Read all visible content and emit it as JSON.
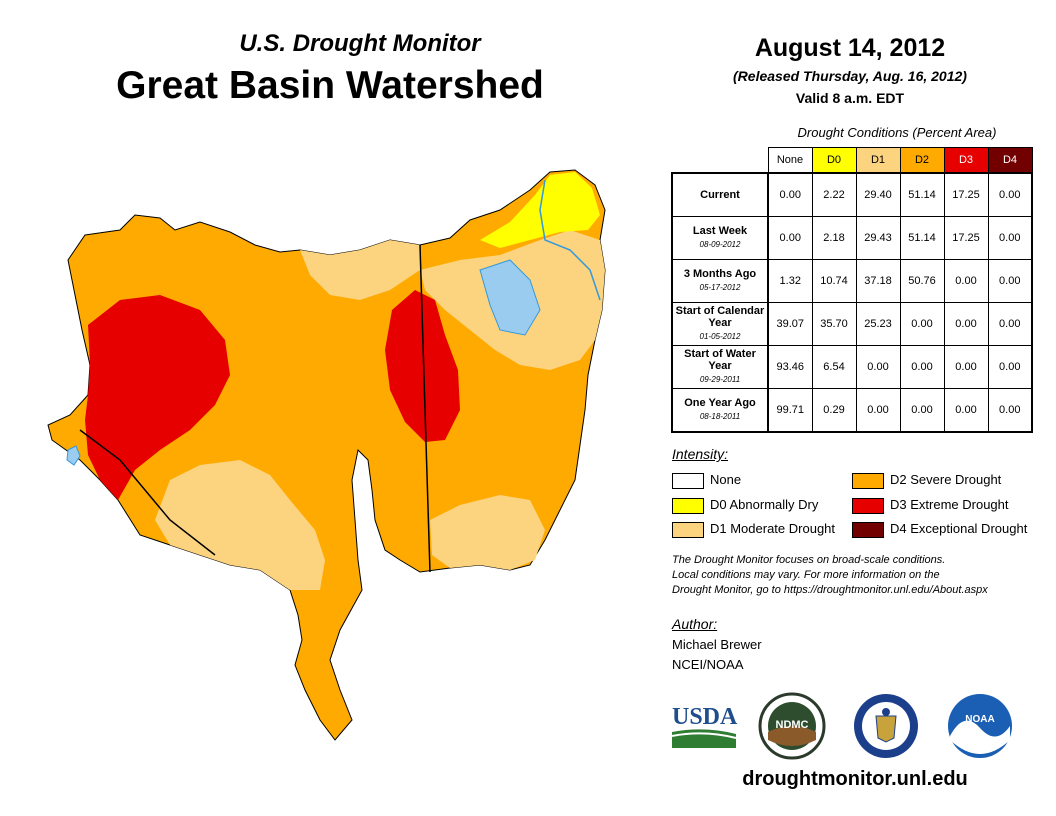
{
  "header": {
    "supertitle": "U.S. Drought Monitor",
    "title": "Great Basin Watershed",
    "date": "August 14, 2012",
    "released": "(Released Thursday, Aug. 16, 2012)",
    "valid": "Valid 8 a.m. EDT"
  },
  "table": {
    "caption": "Drought Conditions (Percent Area)",
    "columns": [
      "None",
      "D0",
      "D1",
      "D2",
      "D3",
      "D4"
    ],
    "column_colors": [
      "#ffffff",
      "#ffff00",
      "#fcd37f",
      "#ffaa00",
      "#e60000",
      "#730000"
    ],
    "column_text_colors": [
      "#000000",
      "#000000",
      "#000000",
      "#000000",
      "#ffffff",
      "#ffffff"
    ],
    "rows": [
      {
        "label": "Current",
        "date": "",
        "values": [
          "0.00",
          "2.22",
          "29.40",
          "51.14",
          "17.25",
          "0.00"
        ]
      },
      {
        "label": "Last Week",
        "date": "08-09-2012",
        "values": [
          "0.00",
          "2.18",
          "29.43",
          "51.14",
          "17.25",
          "0.00"
        ]
      },
      {
        "label": "3 Months Ago",
        "date": "05-17-2012",
        "values": [
          "1.32",
          "10.74",
          "37.18",
          "50.76",
          "0.00",
          "0.00"
        ]
      },
      {
        "label": "Start of Calendar Year",
        "date": "01-05-2012",
        "values": [
          "39.07",
          "35.70",
          "25.23",
          "0.00",
          "0.00",
          "0.00"
        ]
      },
      {
        "label": "Start of Water Year",
        "date": "09-29-2011",
        "values": [
          "93.46",
          "6.54",
          "0.00",
          "0.00",
          "0.00",
          "0.00"
        ]
      },
      {
        "label": "One Year Ago",
        "date": "08-18-2011",
        "values": [
          "99.71",
          "0.29",
          "0.00",
          "0.00",
          "0.00",
          "0.00"
        ]
      }
    ]
  },
  "legend": {
    "title": "Intensity:",
    "items": [
      {
        "label": "None",
        "color": "#ffffff"
      },
      {
        "label": "D0 Abnormally Dry",
        "color": "#ffff00"
      },
      {
        "label": "D1 Moderate Drought",
        "color": "#fcd37f"
      },
      {
        "label": "D2 Severe Drought",
        "color": "#ffaa00"
      },
      {
        "label": "D3 Extreme Drought",
        "color": "#e60000"
      },
      {
        "label": "D4 Exceptional Drought",
        "color": "#730000"
      }
    ]
  },
  "note": {
    "line1": "The Drought Monitor focuses on broad-scale conditions.",
    "line2": "Local conditions may vary. For more information on the",
    "line3": "Drought Monitor, go to https://droughtmonitor.unl.edu/About.aspx"
  },
  "author": {
    "title": "Author:",
    "name": "Michael Brewer",
    "org": "NCEI/NOAA"
  },
  "logos": {
    "usda": "USDA",
    "ndmc": "NDMC",
    "noaa": "NOAA"
  },
  "website": "droughtmonitor.unl.edu",
  "map_colors": {
    "lake": "#99ccee",
    "river": "#3399dd",
    "boundary": "#000000"
  }
}
